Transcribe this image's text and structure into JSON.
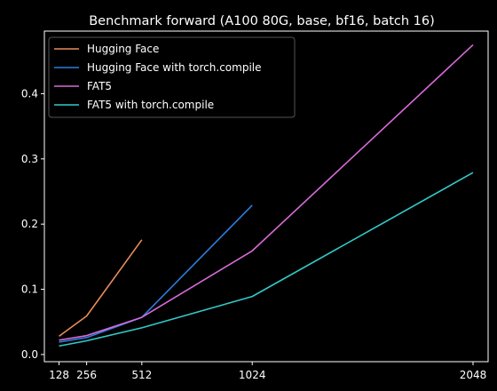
{
  "chart_data": {
    "type": "line",
    "title": "Benchmark forward (A100 80G, base, bf16, batch 16)",
    "xlabel": "",
    "ylabel": "",
    "x_ticks": [
      128,
      256,
      512,
      1024,
      2048
    ],
    "y_ticks": [
      0.0,
      0.1,
      0.2,
      0.3,
      0.4
    ],
    "y_tick_labels": [
      "0.0",
      "0.1",
      "0.2",
      "0.3",
      "0.4"
    ],
    "xlim": [
      60,
      2118
    ],
    "ylim": [
      -0.011,
      0.496
    ],
    "grid": false,
    "legend_position": "top-left",
    "background": "#000000",
    "series": [
      {
        "name": "Hugging Face",
        "color": "#e88c5a",
        "x": [
          128,
          256,
          512
        ],
        "y": [
          0.028,
          0.059,
          0.176
        ]
      },
      {
        "name": "Hugging Face with torch.compile",
        "color": "#2a7fe0",
        "x": [
          128,
          256,
          512,
          1024
        ],
        "y": [
          0.019,
          0.026,
          0.057,
          0.229
        ]
      },
      {
        "name": "FAT5",
        "color": "#d96ad9",
        "x": [
          128,
          256,
          512,
          1024,
          2048
        ],
        "y": [
          0.022,
          0.029,
          0.057,
          0.159,
          0.475
        ]
      },
      {
        "name": "FAT5 with torch.compile",
        "color": "#33c9c9",
        "x": [
          128,
          256,
          512,
          1024,
          2048
        ],
        "y": [
          0.013,
          0.021,
          0.041,
          0.089,
          0.279
        ]
      }
    ]
  }
}
